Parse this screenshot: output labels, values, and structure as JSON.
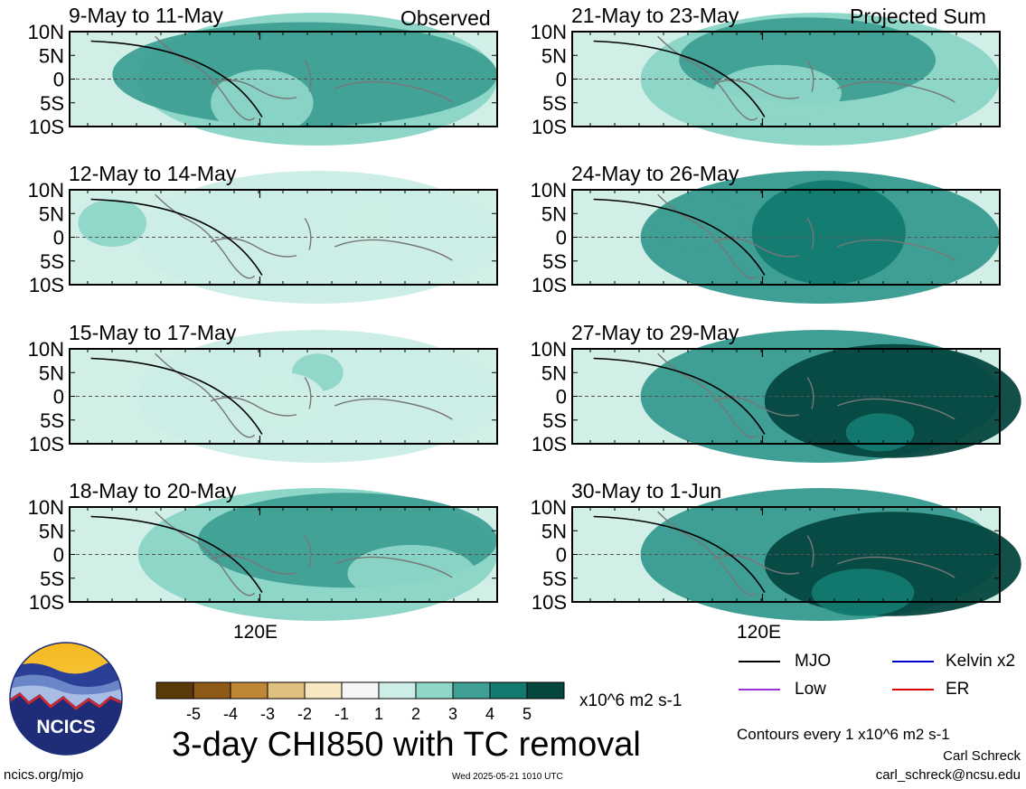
{
  "figure": {
    "title": "3-day CHI850 with TC removal",
    "observed_label": "Observed",
    "projected_label": "Projected Sum",
    "x_tick_label": "120E",
    "units": "x10^6 m2 s-1",
    "contours_note": "Contours every 1 x10^6 m2 s-1",
    "author": "Carl Schreck",
    "email": "carl_schreck@ncsu.edu",
    "site": "ncics.org/mjo",
    "timestamp": "Wed 2025-05-21 1010 UTC",
    "logo_text": "NCICS"
  },
  "colorbar": {
    "labels": [
      "-5",
      "-4",
      "-3",
      "-2",
      "-1",
      "1",
      "2",
      "3",
      "4",
      "5"
    ],
    "colors": [
      "#5a3a0a",
      "#8e5a17",
      "#bf8636",
      "#e0c07e",
      "#f6e9c2",
      "#f6f6f6",
      "#cdeee6",
      "#8dd6c8",
      "#3f9f94",
      "#137a70",
      "#05463f"
    ]
  },
  "legend": [
    {
      "label": "MJO",
      "color": "#000000"
    },
    {
      "label": "Kelvin x2",
      "color": "#0000cc"
    },
    {
      "label": "Low",
      "color": "#9b30d9"
    },
    {
      "label": "ER",
      "color": "#dd0000"
    }
  ],
  "chart_data": {
    "type": "heatmap",
    "variable": "3-day CHI850 anomaly",
    "units": "x10^6 m2 s-1",
    "y_ticks": [
      "10N",
      "5N",
      "0",
      "5S",
      "10S"
    ],
    "x_ticks": [
      "120E"
    ],
    "panels": [
      {
        "title": "9-May to 11-May",
        "group": "Observed",
        "dominant_value": 2,
        "max_value": 3
      },
      {
        "title": "12-May to 14-May",
        "group": "Observed",
        "dominant_value": 1,
        "max_value": 2
      },
      {
        "title": "15-May to 17-May",
        "group": "Observed",
        "dominant_value": 1,
        "max_value": 2
      },
      {
        "title": "18-May to 20-May",
        "group": "Observed",
        "dominant_value": 2,
        "max_value": 3
      },
      {
        "title": "21-May to 23-May",
        "group": "Projected Sum",
        "dominant_value": 2,
        "max_value": 3
      },
      {
        "title": "24-May to 26-May",
        "group": "Projected Sum",
        "dominant_value": 3,
        "max_value": 4
      },
      {
        "title": "27-May to 29-May",
        "group": "Projected Sum",
        "dominant_value": 3,
        "max_value": 5
      },
      {
        "title": "30-May to 1-Jun",
        "group": "Projected Sum",
        "dominant_value": 3,
        "max_value": 5
      }
    ]
  }
}
